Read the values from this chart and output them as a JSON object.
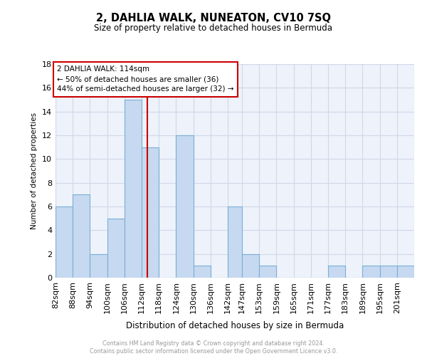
{
  "title": "2, DAHLIA WALK, NUNEATON, CV10 7SQ",
  "subtitle": "Size of property relative to detached houses in Bermuda",
  "xlabel": "Distribution of detached houses by size in Bermuda",
  "ylabel": "Number of detached properties",
  "bin_edges": [
    82,
    88,
    94,
    100,
    106,
    112,
    118,
    124,
    130,
    136,
    142,
    147,
    153,
    159,
    165,
    171,
    177,
    183,
    189,
    195,
    201
  ],
  "counts": [
    6,
    7,
    2,
    5,
    15,
    11,
    0,
    12,
    1,
    0,
    6,
    2,
    1,
    0,
    0,
    0,
    1,
    0,
    1,
    1,
    1
  ],
  "bar_color": "#c6d9f0",
  "bar_edge_color": "#7bafd4",
  "property_size": 114,
  "vline_color": "#cc0000",
  "annotation_line1": "2 DAHLIA WALK: 114sqm",
  "annotation_line2": "← 50% of detached houses are smaller (36)",
  "annotation_line3": "44% of semi-detached houses are larger (32) →",
  "annotation_box_facecolor": "#ffffff",
  "annotation_box_edgecolor": "#cc0000",
  "ylim": [
    0,
    18
  ],
  "yticks": [
    0,
    2,
    4,
    6,
    8,
    10,
    12,
    14,
    16,
    18
  ],
  "grid_color": "#d0d8e8",
  "axes_facecolor": "#edf2fb",
  "footer_line1": "Contains HM Land Registry data © Crown copyright and database right 2024.",
  "footer_line2": "Contains public sector information licensed under the Open Government Licence v3.0.",
  "tick_labels": [
    "82sqm",
    "88sqm",
    "94sqm",
    "100sqm",
    "106sqm",
    "112sqm",
    "118sqm",
    "124sqm",
    "130sqm",
    "136sqm",
    "142sqm",
    "147sqm",
    "153sqm",
    "159sqm",
    "165sqm",
    "171sqm",
    "177sqm",
    "183sqm",
    "189sqm",
    "195sqm",
    "201sqm"
  ]
}
